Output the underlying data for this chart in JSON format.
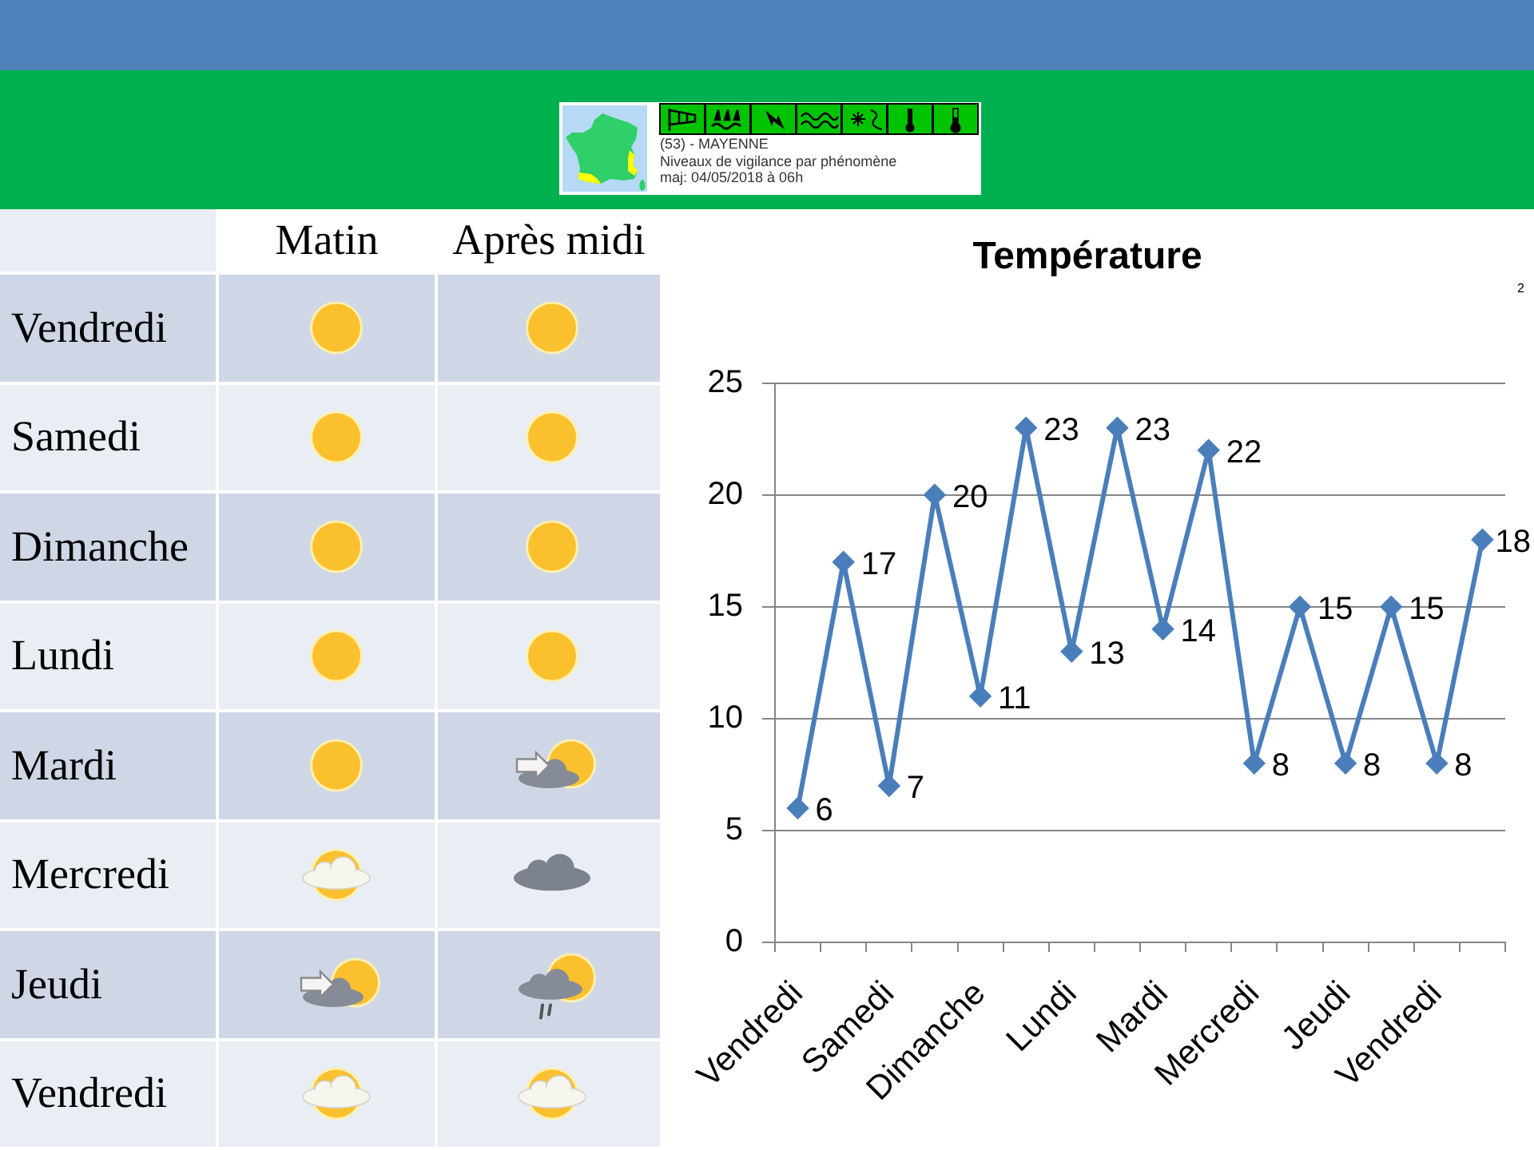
{
  "chart_data": [
    {
      "type": "other",
      "annotations": [
        "(53) - MAYENNE",
        "Niveaux de vigilance par phénomène",
        "maj: 04/05/2018 à 06h"
      ]
    },
    {
      "type": "other",
      "categories": [
        "Matin",
        "Après midi"
      ],
      "y_categories": [
        "Vendredi",
        "Samedi",
        "Dimanche",
        "Lundi",
        "Mardi",
        "Mercredi",
        "Jeudi",
        "Vendredi"
      ]
    },
    {
      "type": "line",
      "title": "Température",
      "categories": [
        "Vendredi",
        null,
        "Samedi",
        null,
        "Dimanche",
        null,
        "Lundi",
        null,
        "Mardi",
        null,
        "Mercredi",
        null,
        "Jeudi",
        null,
        "Vendredi",
        null
      ],
      "values": [
        6,
        17,
        7,
        20,
        11,
        23,
        13,
        23,
        14,
        22,
        8,
        15,
        8,
        15,
        8,
        18
      ],
      "color": "#4a7ebb",
      "ylim": [
        0,
        25
      ],
      "yticks": [
        0,
        5,
        10,
        15,
        20,
        25
      ],
      "grid": "y",
      "marker": "diamond",
      "data_labels": true,
      "annotations": [
        "2"
      ]
    }
  ]
}
